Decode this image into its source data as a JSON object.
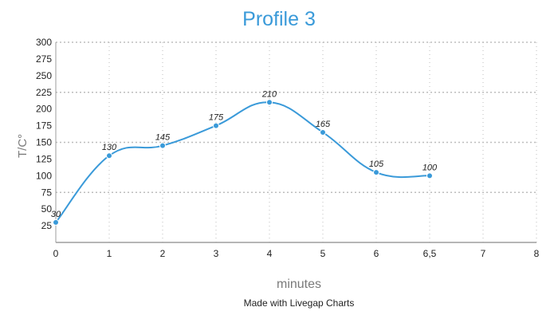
{
  "chart_data": {
    "type": "line",
    "title": "Profile 3",
    "xlabel": "minutes",
    "ylabel": "T/C°",
    "categories": [
      "0",
      "1",
      "2",
      "3",
      "4",
      "5",
      "6",
      "6,5",
      "7",
      "8"
    ],
    "series": [
      {
        "name": "Profile 3",
        "color": "#3a9ad9",
        "values": [
          30,
          130,
          145,
          175,
          210,
          165,
          105,
          100,
          null,
          null
        ]
      }
    ],
    "data_labels": [
      "30",
      "130",
      "145",
      "175",
      "210",
      "165",
      "105",
      "100"
    ],
    "ylim": [
      0,
      300
    ],
    "yticks": [
      25,
      50,
      75,
      100,
      125,
      150,
      175,
      200,
      225,
      250,
      275,
      300
    ],
    "y_gridlines": [
      75,
      150,
      225,
      300
    ],
    "x_gridlines": true,
    "smooth": true,
    "legend": "none"
  },
  "title": "Profile 3",
  "axes": {
    "xlabel": "minutes",
    "ylabel": "T/C°"
  },
  "footer": {
    "credit": "Made with Livegap Charts"
  },
  "colors": {
    "accent": "#3a9ad9",
    "grid": "#bdbdbd",
    "axis": "#9e9e9e"
  }
}
